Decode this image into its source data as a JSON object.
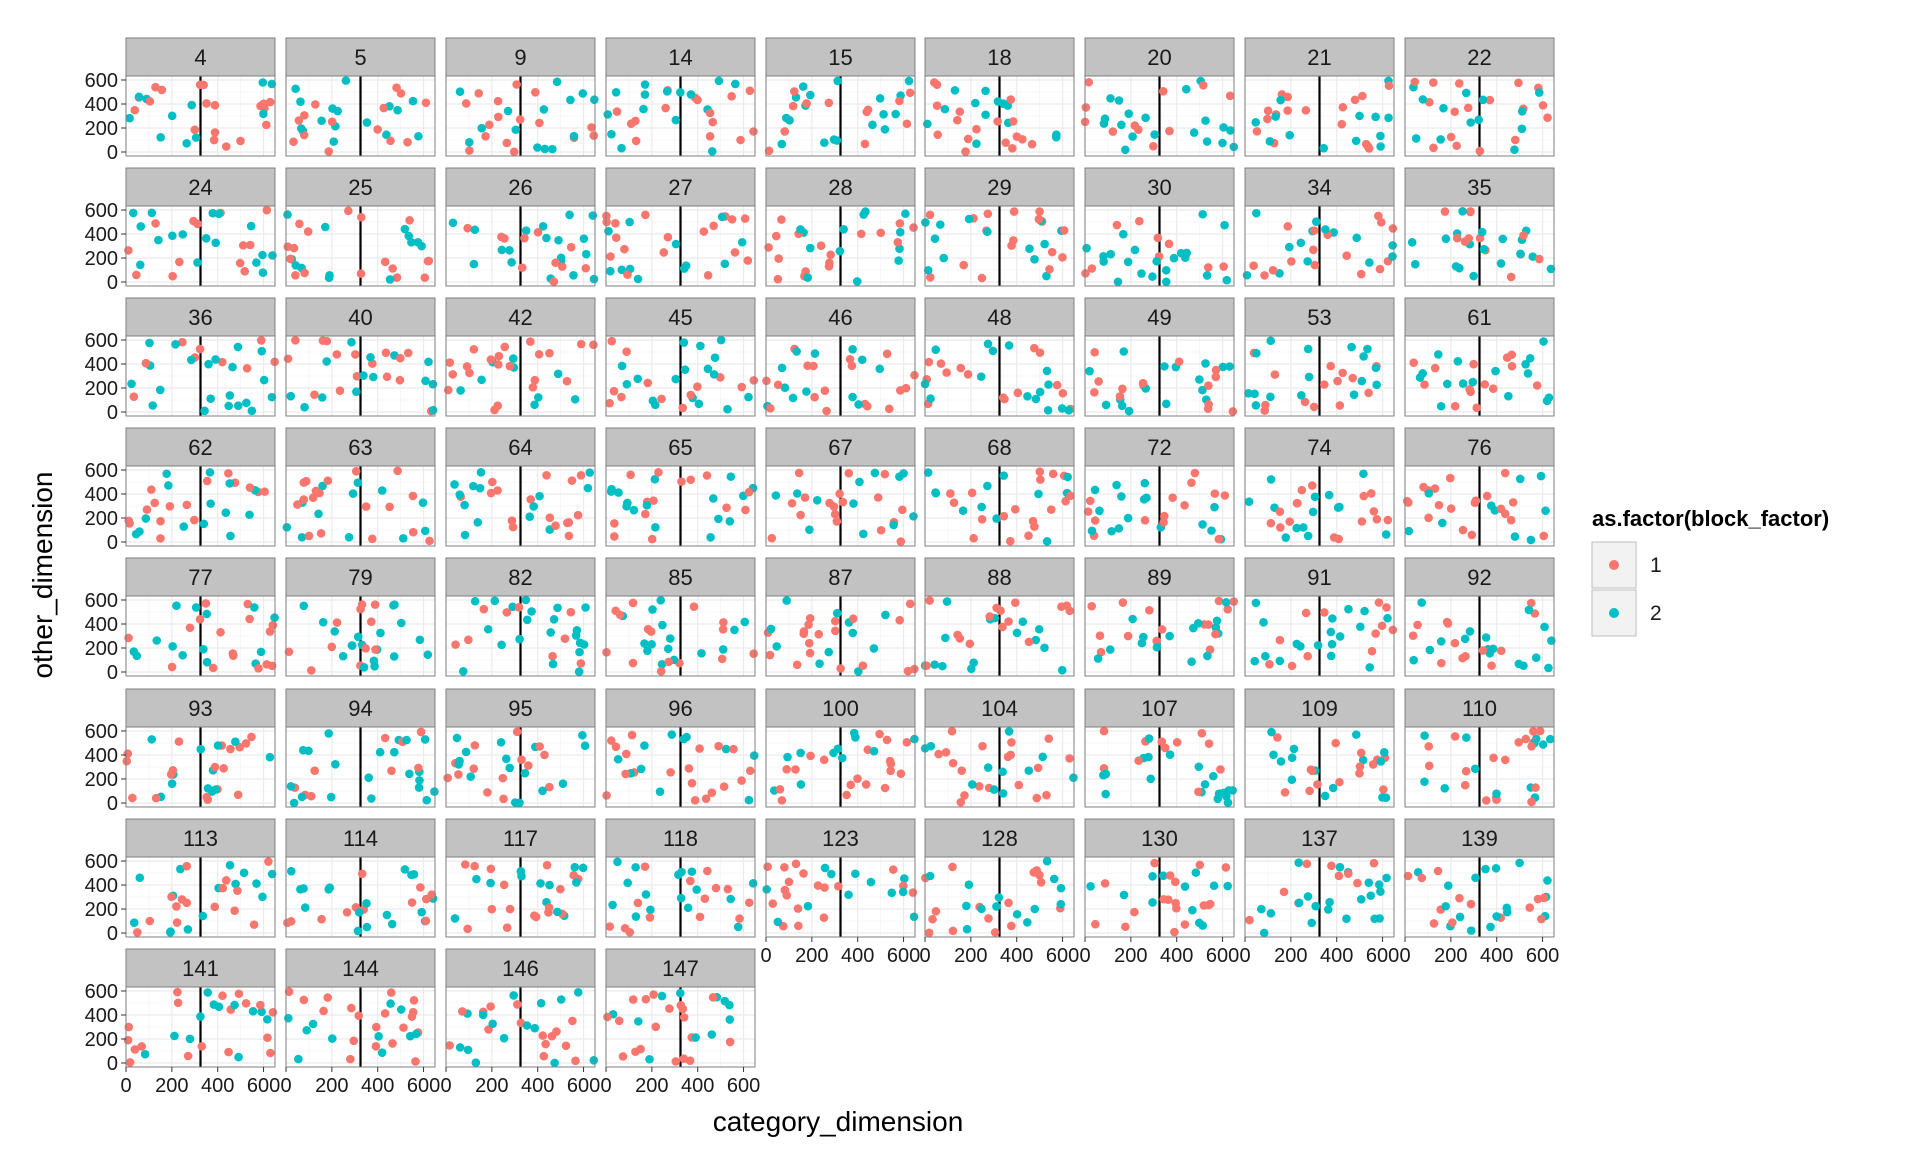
{
  "chart_data": {
    "type": "scatter",
    "facet_layout": "wrap",
    "facet_columns": 9,
    "panels": [
      "4",
      "5",
      "9",
      "14",
      "15",
      "18",
      "20",
      "21",
      "22",
      "24",
      "25",
      "26",
      "27",
      "28",
      "29",
      "30",
      "34",
      "35",
      "36",
      "40",
      "42",
      "45",
      "46",
      "48",
      "49",
      "53",
      "61",
      "62",
      "63",
      "64",
      "65",
      "67",
      "68",
      "72",
      "74",
      "76",
      "77",
      "79",
      "82",
      "85",
      "87",
      "88",
      "89",
      "91",
      "92",
      "93",
      "94",
      "95",
      "96",
      "100",
      "104",
      "107",
      "109",
      "110",
      "113",
      "114",
      "117",
      "118",
      "123",
      "128",
      "130",
      "137",
      "139",
      "141",
      "144",
      "146",
      "147"
    ],
    "xlabel": "category_dimension",
    "ylabel": "other_dimension",
    "xlim": [
      0,
      650
    ],
    "ylim": [
      0,
      600
    ],
    "x_ticks": [
      0,
      200,
      400,
      600
    ],
    "y_ticks": [
      0,
      200,
      400,
      600
    ],
    "x_tick_labels": [
      "0",
      "200",
      "400",
      "600"
    ],
    "y_tick_labels": [
      "0",
      "200",
      "400",
      "600"
    ],
    "vline_x": 325,
    "grid": true,
    "points_per_panel": 30,
    "legend": {
      "title": "as.factor(block_factor)",
      "placement": "right",
      "entries": [
        {
          "label": "1",
          "color": "#F8766D"
        },
        {
          "label": "2",
          "color": "#00BFC4"
        }
      ]
    }
  },
  "colors": {
    "strip_background": "#C2C2C2",
    "panel_background": "#FFFFFF",
    "grid_line": "#EBEBEB",
    "vline": "#000000"
  }
}
